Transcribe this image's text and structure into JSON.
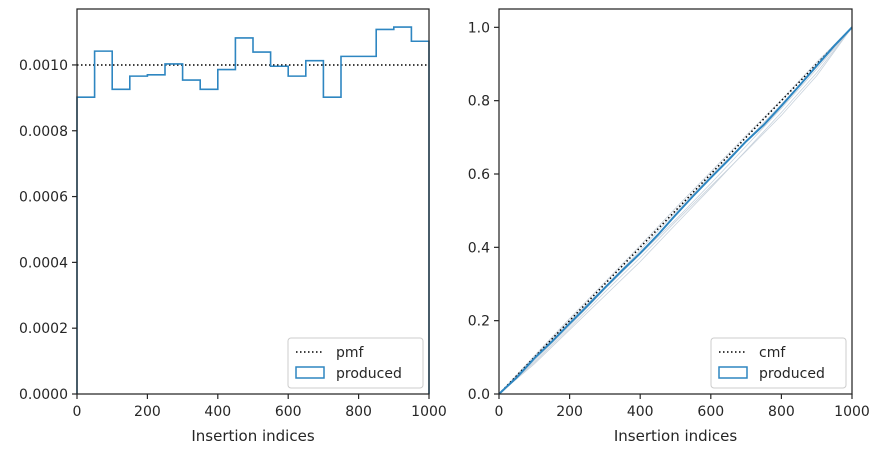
{
  "chart_data": [
    {
      "type": "step-histogram",
      "xlabel": "Insertion indices",
      "ylabel": "",
      "xlim": [
        0,
        1000
      ],
      "ylim": [
        0,
        0.00117
      ],
      "grid": false,
      "legend_position": "lower-right",
      "xticks": [
        0,
        200,
        400,
        600,
        800,
        1000
      ],
      "xtick_labels": [
        "0",
        "200",
        "400",
        "600",
        "800",
        "1000"
      ],
      "yticks": [
        0,
        0.0002,
        0.0004,
        0.0006,
        0.0008,
        0.001
      ],
      "ytick_labels": [
        "0.0000",
        "0.0002",
        "0.0004",
        "0.0006",
        "0.0008",
        "0.0010"
      ],
      "series": [
        {
          "name": "pmf",
          "style": "dotted",
          "color": "#000000",
          "x": [
            0,
            1000
          ],
          "y": [
            0.001,
            0.001
          ]
        },
        {
          "name": "produced",
          "style": "step",
          "color": "#2e86c1",
          "bin_edges": [
            0,
            50,
            100,
            150,
            200,
            250,
            300,
            350,
            400,
            450,
            500,
            550,
            600,
            650,
            700,
            750,
            800,
            850,
            900,
            950,
            1000
          ],
          "values": [
            0.000902,
            0.001042,
            0.000926,
            0.000966,
            0.00097,
            0.001003,
            0.000954,
            0.000926,
            0.000986,
            0.001082,
            0.001039,
            0.000996,
            0.000966,
            0.001013,
            0.000902,
            0.001026,
            0.001026,
            0.001108,
            0.001115,
            0.001072
          ]
        }
      ]
    },
    {
      "type": "line",
      "xlabel": "Insertion indices",
      "ylabel": "",
      "xlim": [
        0,
        1000
      ],
      "ylim": [
        0,
        1.05
      ],
      "grid": false,
      "legend_position": "lower-right",
      "xticks": [
        0,
        200,
        400,
        600,
        800,
        1000
      ],
      "xtick_labels": [
        "0",
        "200",
        "400",
        "600",
        "800",
        "1000"
      ],
      "yticks": [
        0,
        0.2,
        0.4,
        0.6,
        0.8,
        1.0
      ],
      "ytick_labels": [
        "0.0",
        "0.2",
        "0.4",
        "0.6",
        "0.8",
        "1.0"
      ],
      "series": [
        {
          "name": "cmf",
          "style": "dotted",
          "color": "#000000",
          "x": [
            0,
            1000
          ],
          "y": [
            0,
            1.0
          ]
        },
        {
          "name": "produced",
          "style": "solid",
          "color": "#2e86c1",
          "x": [
            0,
            50,
            100,
            150,
            200,
            250,
            300,
            350,
            400,
            450,
            500,
            550,
            600,
            650,
            700,
            750,
            800,
            850,
            900,
            950,
            1000
          ],
          "y": [
            0,
            0.045,
            0.097,
            0.143,
            0.192,
            0.24,
            0.29,
            0.338,
            0.384,
            0.434,
            0.488,
            0.54,
            0.59,
            0.638,
            0.689,
            0.734,
            0.786,
            0.84,
            0.895,
            0.95,
            1.0
          ]
        }
      ],
      "faint_series_color": "#c8d2dc",
      "faint_series": [
        {
          "x": [
            0,
            100,
            200,
            300,
            400,
            500,
            600,
            700,
            800,
            900,
            1000
          ],
          "y": [
            0,
            0.082,
            0.175,
            0.268,
            0.361,
            0.462,
            0.562,
            0.664,
            0.768,
            0.876,
            1.0
          ]
        },
        {
          "x": [
            0,
            100,
            200,
            300,
            400,
            500,
            600,
            700,
            800,
            900,
            1000
          ],
          "y": [
            0,
            0.104,
            0.206,
            0.305,
            0.405,
            0.507,
            0.606,
            0.705,
            0.802,
            0.905,
            1.0
          ]
        },
        {
          "x": [
            0,
            100,
            200,
            300,
            400,
            500,
            600,
            700,
            800,
            900,
            1000
          ],
          "y": [
            0,
            0.09,
            0.186,
            0.286,
            0.381,
            0.475,
            0.574,
            0.676,
            0.779,
            0.886,
            1.0
          ]
        },
        {
          "x": [
            0,
            100,
            200,
            300,
            400,
            500,
            600,
            700,
            800,
            900,
            1000
          ],
          "y": [
            0,
            0.1,
            0.2,
            0.292,
            0.392,
            0.496,
            0.596,
            0.69,
            0.79,
            0.893,
            1.0
          ]
        },
        {
          "x": [
            0,
            100,
            200,
            300,
            400,
            500,
            600,
            700,
            800,
            900,
            1000
          ],
          "y": [
            0,
            0.086,
            0.18,
            0.278,
            0.372,
            0.47,
            0.566,
            0.662,
            0.76,
            0.868,
            1.0
          ]
        }
      ]
    }
  ]
}
